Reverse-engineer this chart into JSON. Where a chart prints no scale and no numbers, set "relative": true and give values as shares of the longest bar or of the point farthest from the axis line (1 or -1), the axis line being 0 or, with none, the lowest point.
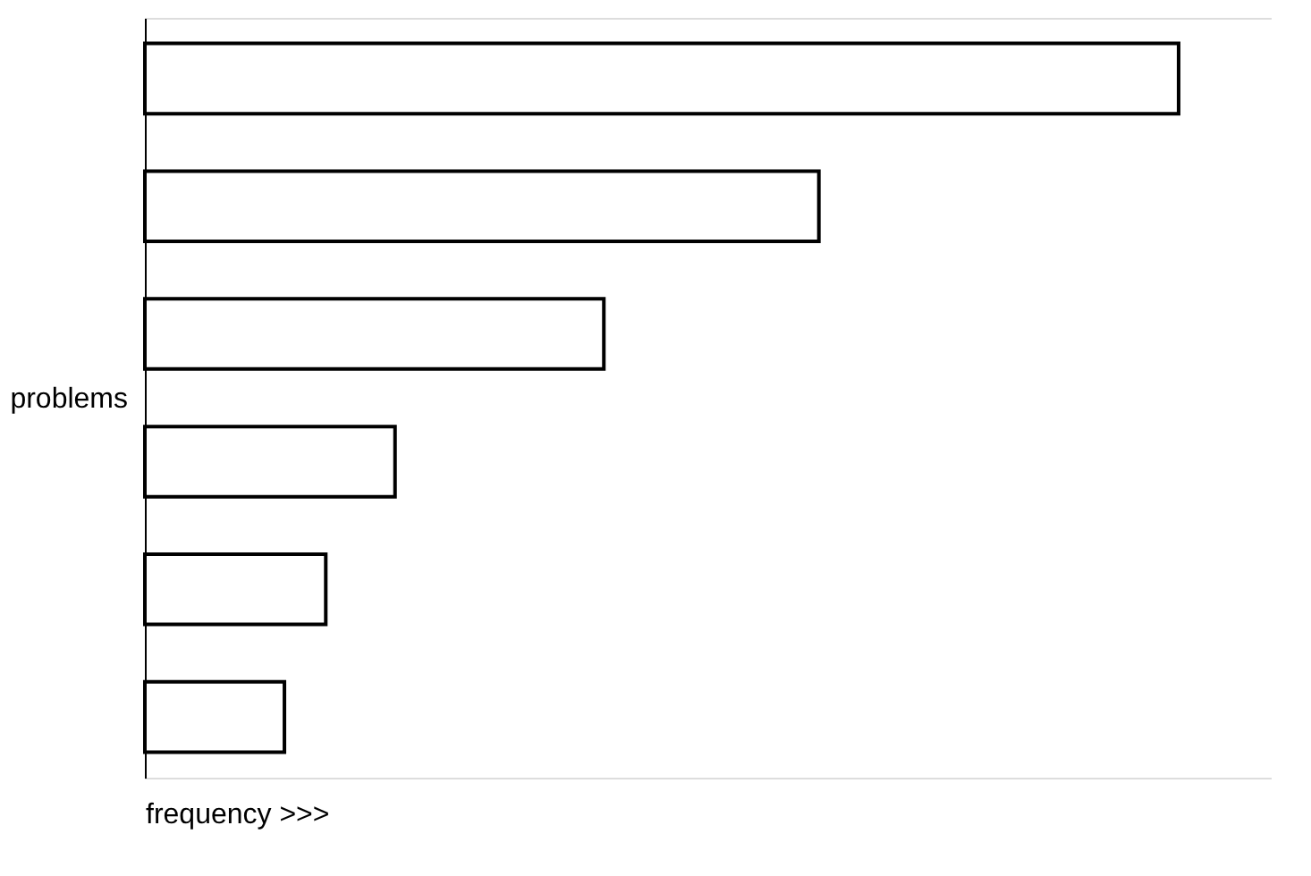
{
  "chart_data": {
    "type": "bar",
    "orientation": "horizontal",
    "relative": true,
    "ylabel": "problems",
    "xlabel": "frequency >>>",
    "categories": [
      null,
      null,
      null,
      null,
      null,
      null
    ],
    "values": [
      1,
      0.652,
      0.444,
      0.242,
      0.175,
      0.135
    ],
    "color": "#ffffff",
    "grid": false
  }
}
